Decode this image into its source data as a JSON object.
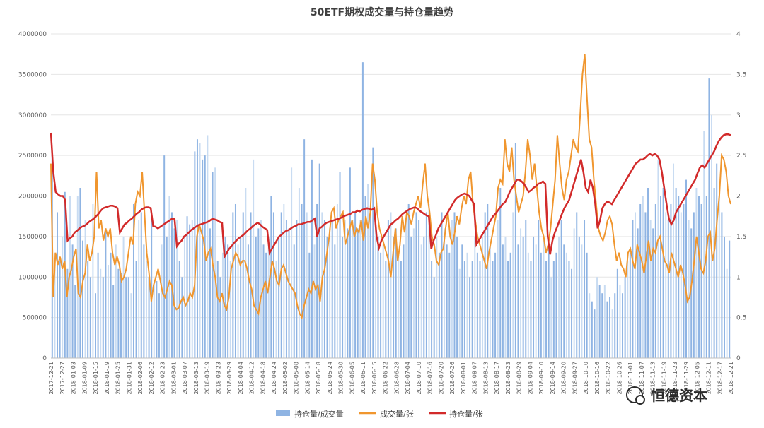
{
  "chart_data": {
    "type": "bar+line",
    "title": "50ETF期权成交量与持仓量趋势",
    "watermark": "恒德资本",
    "colors": {
      "bars": "#8fb4e3",
      "bars_light": "#c9dcf2",
      "volume_oi": "#f0962e",
      "oi": "#d22a2a",
      "grid": "#e6e6e6"
    },
    "y_left": {
      "min": 0,
      "max": 4000000,
      "ticks": [
        0,
        500000,
        1000000,
        1500000,
        2000000,
        2500000,
        3000000,
        3500000,
        4000000
      ]
    },
    "y_right": {
      "min": 0,
      "max": 4,
      "ticks": [
        "0",
        "0.5",
        "1",
        "1.5",
        "2",
        "2.5",
        "3",
        "3.5",
        "4"
      ]
    },
    "x_tick_labels": [
      "2017-12-21",
      "2017-12-27",
      "2018-01-03",
      "2018-01-09",
      "2018-01-15",
      "2018-01-19",
      "2018-01-25",
      "2018-01-31",
      "2018-02-06",
      "2018-02-12",
      "2018-02-23",
      "2018-03-01",
      "2018-03-07",
      "2018-03-13",
      "2018-03-19",
      "2018-03-23",
      "2018-03-29",
      "2018-04-04",
      "2018-04-12",
      "2018-04-18",
      "2018-04-24",
      "2018-05-02",
      "2018-05-08",
      "2018-05-14",
      "2018-05-18",
      "2018-05-24",
      "2018-05-30",
      "2018-06-05",
      "2018-06-11",
      "2018-06-15",
      "2018-06-22",
      "2018-06-28",
      "2018-07-04",
      "2018-07-10",
      "2018-07-16",
      "2018-07-20",
      "2018-07-26",
      "2018-08-01",
      "2018-08-07",
      "2018-08-13",
      "2018-08-17",
      "2018-08-23",
      "2018-08-29",
      "2018-09-04",
      "2018-09-10",
      "2018-09-14",
      "2018-09-20",
      "2018-09-27",
      "2018-10-10",
      "2018-10-16",
      "2018-10-22",
      "2018-10-26",
      "2018-11-01",
      "2018-11-07",
      "2018-11-13",
      "2018-11-19",
      "2018-11-23",
      "2018-11-29",
      "2018-12-05",
      "2018-12-11",
      "2018-12-17",
      "2018-12-21"
    ],
    "series": [
      {
        "name": "持仓量/成交量",
        "axis": "left",
        "kind": "bar",
        "values": [
          2500000,
          1300000,
          1800000,
          1200000,
          1500000,
          2050000,
          1100000,
          2000000,
          1400000,
          900000,
          2000000,
          2100000,
          1450000,
          1700000,
          1200000,
          1000000,
          1900000,
          800000,
          1300000,
          1100000,
          1000000,
          1600000,
          1150000,
          1300000,
          900000,
          1400000,
          1100000,
          1050000,
          1500000,
          1000000,
          1000000,
          800000,
          1900000,
          1200000,
          1700000,
          1800000,
          1400000,
          1200000,
          1000000,
          1700000,
          900000,
          950000,
          800000,
          1400000,
          2500000,
          1500000,
          2000000,
          1800000,
          1600000,
          1700000,
          1200000,
          1000000,
          1500000,
          1750000,
          1650000,
          1700000,
          2550000,
          2700000,
          2650000,
          2450000,
          2500000,
          2750000,
          1600000,
          2300000,
          2350000,
          1200000,
          1000000,
          1300000,
          1500000,
          1400000,
          1200000,
          1800000,
          1900000,
          1400000,
          1500000,
          1800000,
          2100000,
          1400000,
          1800000,
          2450000,
          1500000,
          1600000,
          1700000,
          1400000,
          1300000,
          1500000,
          2000000,
          1800000,
          1200000,
          1500000,
          1800000,
          1900000,
          1700000,
          1600000,
          2350000,
          1400000,
          1700000,
          2100000,
          1900000,
          2700000,
          1800000,
          1300000,
          2450000,
          1400000,
          1900000,
          2400000,
          1800000,
          1700000,
          1500000,
          1600000,
          1700000,
          1400000,
          1900000,
          2300000,
          1500000,
          1700000,
          1600000,
          2350000,
          1700000,
          1800000,
          1600000,
          1700000,
          3650000,
          2000000,
          2150000,
          1800000,
          2600000,
          1800000,
          1500000,
          1300000,
          1400000,
          1200000,
          1700000,
          1800000,
          1500000,
          1600000,
          1300000,
          1200000,
          1400000,
          1700000,
          1900000,
          1500000,
          1600000,
          1800000,
          1700000,
          1400000,
          1500000,
          1800000,
          1900000,
          1200000,
          1000000,
          1500000,
          1300000,
          1800000,
          1600000,
          1400000,
          1300000,
          1700000,
          1800000,
          1500000,
          1100000,
          1400000,
          1200000,
          1300000,
          1000000,
          1200000,
          1500000,
          1300000,
          1200000,
          1500000,
          1800000,
          1900000,
          1400000,
          1200000,
          1300000,
          1700000,
          2100000,
          1400000,
          1500000,
          1200000,
          1300000,
          1800000,
          2650000,
          1400000,
          1600000,
          1500000,
          1700000,
          1300000,
          1200000,
          1500000,
          1400000,
          1700000,
          1300000,
          1500000,
          1200000,
          1400000,
          1000000,
          1200000,
          1300000,
          1500000,
          1700000,
          1400000,
          1300000,
          1200000,
          1100000,
          1600000,
          1800000,
          1500000,
          1400000,
          1700000,
          1300000,
          800000,
          700000,
          600000,
          1000000,
          900000,
          800000,
          900000,
          700000,
          750000,
          600000,
          800000,
          1100000,
          900000,
          800000,
          1000000,
          1200000,
          1300000,
          1700000,
          1800000,
          1600000,
          1900000,
          2000000,
          1800000,
          2100000,
          1700000,
          1600000,
          1900000,
          2450000,
          2000000,
          2100000,
          1800000,
          1700000,
          1900000,
          2400000,
          2100000,
          2000000,
          1800000,
          1900000,
          2200000,
          1700000,
          1600000,
          1800000,
          2100000,
          2000000,
          1900000,
          2800000,
          2000000,
          3450000,
          3000000,
          2100000,
          2400000,
          2000000,
          1800000,
          1500000,
          1100000,
          1450000
        ]
      },
      {
        "name": "成交量/张",
        "axis": "right",
        "kind": "line",
        "values": [
          2.4,
          0.75,
          1.3,
          1.15,
          1.25,
          1.1,
          1.2,
          0.75,
          1.0,
          1.1,
          1.25,
          1.35,
          0.8,
          0.75,
          0.95,
          1.05,
          1.4,
          1.2,
          1.3,
          1.5,
          2.3,
          1.6,
          1.7,
          1.45,
          1.6,
          1.5,
          1.6,
          1.3,
          1.15,
          1.25,
          1.15,
          0.95,
          1.0,
          1.1,
          1.3,
          1.5,
          1.4,
          1.9,
          2.05,
          2.0,
          2.3,
          1.8,
          1.3,
          1.05,
          0.7,
          0.9,
          1.0,
          1.1,
          0.95,
          0.8,
          0.75,
          0.85,
          0.95,
          0.9,
          0.65,
          0.6,
          0.62,
          0.7,
          0.75,
          0.65,
          0.7,
          0.8,
          0.75,
          0.9,
          1.5,
          1.65,
          1.55,
          1.45,
          1.2,
          1.3,
          1.35,
          1.15,
          1.0,
          0.75,
          0.7,
          0.8,
          0.65,
          0.6,
          0.75,
          1.1,
          1.2,
          1.3,
          1.25,
          1.15,
          1.2,
          1.2,
          1.1,
          0.95,
          0.85,
          0.65,
          0.6,
          0.55,
          0.75,
          0.85,
          0.95,
          0.8,
          1.0,
          1.2,
          1.1,
          0.95,
          0.9,
          1.1,
          1.15,
          1.05,
          0.95,
          0.9,
          0.85,
          0.8,
          0.65,
          0.55,
          0.5,
          0.65,
          0.75,
          0.85,
          0.8,
          0.95,
          0.85,
          0.9,
          0.7,
          1.0,
          1.1,
          1.3,
          1.5,
          1.8,
          1.85,
          1.6,
          1.7,
          1.75,
          1.8,
          1.4,
          1.5,
          1.6,
          1.7,
          1.5,
          1.6,
          1.55,
          1.7,
          1.45,
          1.75,
          1.6,
          1.8,
          2.4,
          2.2,
          1.8,
          1.6,
          1.5,
          1.4,
          1.3,
          1.2,
          1.0,
          1.3,
          1.6,
          1.2,
          1.4,
          1.75,
          1.55,
          1.8,
          1.75,
          1.65,
          1.8,
          1.9,
          2.0,
          1.85,
          2.15,
          2.4,
          2.0,
          1.8,
          1.5,
          1.4,
          1.2,
          1.15,
          1.3,
          1.35,
          1.6,
          1.8,
          1.5,
          1.4,
          1.55,
          1.75,
          1.65,
          1.85,
          2.0,
          1.9,
          2.2,
          2.3,
          1.9,
          1.7,
          1.5,
          1.4,
          1.3,
          1.2,
          1.1,
          1.3,
          1.45,
          1.6,
          1.75,
          2.1,
          2.2,
          2.15,
          2.7,
          2.4,
          2.3,
          2.6,
          2.2,
          2.0,
          1.8,
          1.9,
          2.0,
          2.3,
          2.7,
          2.5,
          2.2,
          2.4,
          2.1,
          1.8,
          1.6,
          1.5,
          1.3,
          1.4,
          1.6,
          1.9,
          2.2,
          2.75,
          2.4,
          2.1,
          1.95,
          2.2,
          2.3,
          2.5,
          2.7,
          2.6,
          2.55,
          3.0,
          3.5,
          3.75,
          3.2,
          2.7,
          2.6,
          2.2,
          1.9,
          1.6,
          1.5,
          1.45,
          1.55,
          1.7,
          1.75,
          1.65,
          1.4,
          1.2,
          1.3,
          1.15,
          1.1,
          1.0,
          1.3,
          1.35,
          1.2,
          1.1,
          1.4,
          1.3,
          1.2,
          1.05,
          1.25,
          1.45,
          1.2,
          1.35,
          1.3,
          1.45,
          1.5,
          1.35,
          1.2,
          1.15,
          1.05,
          1.3,
          1.2,
          1.1,
          1.0,
          1.15,
          1.05,
          0.9,
          0.7,
          0.75,
          0.95,
          1.2,
          1.5,
          1.3,
          1.1,
          1.05,
          1.2,
          1.5,
          1.55,
          1.2,
          1.35,
          1.7,
          2.0,
          2.5,
          2.45,
          2.3,
          2.0,
          1.9
        ]
      },
      {
        "name": "持仓量/张",
        "axis": "right",
        "kind": "line",
        "values": [
          2.78,
          2.3,
          2.05,
          2.02,
          2.0,
          2.0,
          1.95,
          1.45,
          1.48,
          1.5,
          1.55,
          1.57,
          1.6,
          1.62,
          1.63,
          1.65,
          1.68,
          1.7,
          1.72,
          1.75,
          1.78,
          1.82,
          1.85,
          1.86,
          1.87,
          1.88,
          1.88,
          1.87,
          1.85,
          1.55,
          1.6,
          1.65,
          1.67,
          1.7,
          1.72,
          1.75,
          1.78,
          1.8,
          1.83,
          1.85,
          1.86,
          1.86,
          1.85,
          1.63,
          1.62,
          1.6,
          1.62,
          1.64,
          1.66,
          1.68,
          1.7,
          1.72,
          1.72,
          1.38,
          1.42,
          1.45,
          1.5,
          1.52,
          1.55,
          1.58,
          1.6,
          1.62,
          1.64,
          1.65,
          1.66,
          1.67,
          1.68,
          1.7,
          1.72,
          1.71,
          1.7,
          1.68,
          1.67,
          1.25,
          1.3,
          1.35,
          1.38,
          1.42,
          1.45,
          1.48,
          1.5,
          1.52,
          1.55,
          1.58,
          1.6,
          1.63,
          1.65,
          1.67,
          1.65,
          1.62,
          1.6,
          1.58,
          1.3,
          1.35,
          1.4,
          1.45,
          1.5,
          1.52,
          1.55,
          1.57,
          1.58,
          1.6,
          1.62,
          1.63,
          1.65,
          1.65,
          1.66,
          1.67,
          1.68,
          1.68,
          1.7,
          1.72,
          1.5,
          1.6,
          1.62,
          1.65,
          1.67,
          1.68,
          1.69,
          1.7,
          1.71,
          1.72,
          1.73,
          1.75,
          1.76,
          1.77,
          1.78,
          1.8,
          1.8,
          1.82,
          1.81,
          1.83,
          1.84,
          1.85,
          1.84,
          1.83,
          1.85,
          1.5,
          1.36,
          1.45,
          1.5,
          1.55,
          1.6,
          1.65,
          1.67,
          1.7,
          1.72,
          1.75,
          1.78,
          1.8,
          1.82,
          1.84,
          1.85,
          1.86,
          1.85,
          1.82,
          1.8,
          1.78,
          1.76,
          1.75,
          1.35,
          1.45,
          1.52,
          1.6,
          1.65,
          1.7,
          1.75,
          1.8,
          1.85,
          1.9,
          1.95,
          1.98,
          2.0,
          2.02,
          2.03,
          2.02,
          2.0,
          1.95,
          1.9,
          1.4,
          1.45,
          1.5,
          1.55,
          1.6,
          1.65,
          1.7,
          1.75,
          1.78,
          1.82,
          1.86,
          1.9,
          1.92,
          1.98,
          2.05,
          2.1,
          2.15,
          2.2,
          2.2,
          2.18,
          2.15,
          2.1,
          2.05,
          2.07,
          2.1,
          2.12,
          2.15,
          2.16,
          2.18,
          2.15,
          1.5,
          1.28,
          1.45,
          1.55,
          1.62,
          1.7,
          1.78,
          1.85,
          1.9,
          1.95,
          2.05,
          2.15,
          2.25,
          2.35,
          2.45,
          2.3,
          2.1,
          2.05,
          2.2,
          2.1,
          1.9,
          1.6,
          1.7,
          1.85,
          1.9,
          1.93,
          1.92,
          1.9,
          1.95,
          2.0,
          2.05,
          2.1,
          2.15,
          2.2,
          2.25,
          2.3,
          2.35,
          2.4,
          2.42,
          2.45,
          2.45,
          2.47,
          2.5,
          2.52,
          2.5,
          2.52,
          2.5,
          2.45,
          2.3,
          2.1,
          1.9,
          1.72,
          1.65,
          1.7,
          1.8,
          1.85,
          1.9,
          1.95,
          2.0,
          2.05,
          2.1,
          2.15,
          2.2,
          2.28,
          2.35,
          2.38,
          2.35,
          2.4,
          2.45,
          2.5,
          2.55,
          2.62,
          2.68,
          2.72,
          2.75,
          2.76,
          2.76,
          2.75
        ]
      }
    ]
  }
}
